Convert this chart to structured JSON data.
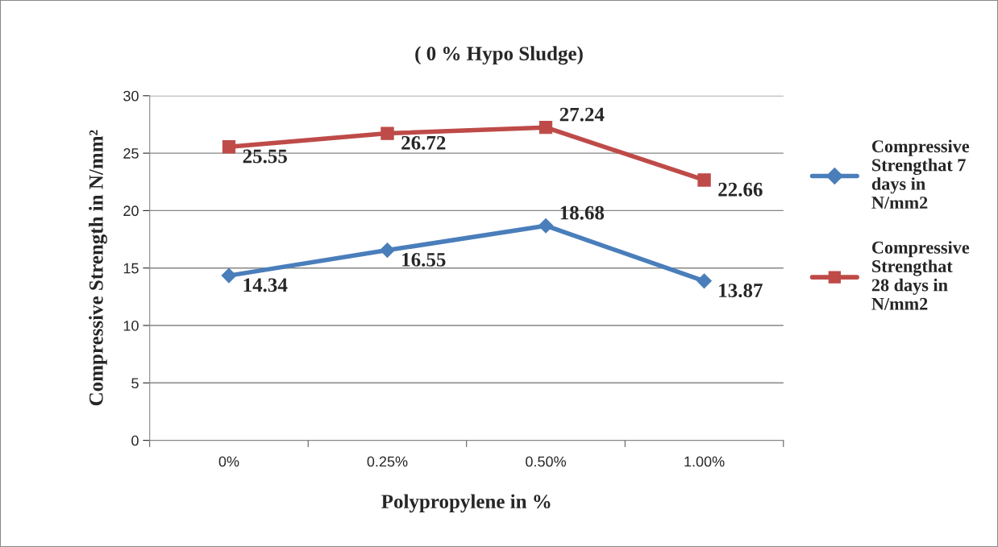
{
  "chart_data": {
    "type": "line",
    "title": "( 0 % Hypo Sludge)",
    "xlabel": "Polypropylene in %",
    "ylabel": "Compressive Strength in N/mm²",
    "categories": [
      "0%",
      "0.25%",
      "0.50%",
      "1.00%"
    ],
    "series": [
      {
        "name": "Compressive Strengthat 7 days in N/mm2",
        "color": "#4a7ebb",
        "marker": "diamond",
        "values": [
          14.34,
          16.55,
          18.68,
          13.87
        ]
      },
      {
        "name": "Compressive Strengthat 28 days in N/mm2",
        "color": "#be4b48",
        "marker": "square",
        "values": [
          25.55,
          26.72,
          27.24,
          22.66
        ]
      }
    ],
    "ylim": [
      0,
      30
    ],
    "yticks": [
      0,
      5,
      10,
      15,
      20,
      25,
      30
    ],
    "grid": "y",
    "legend": "right",
    "data_labels": true
  }
}
